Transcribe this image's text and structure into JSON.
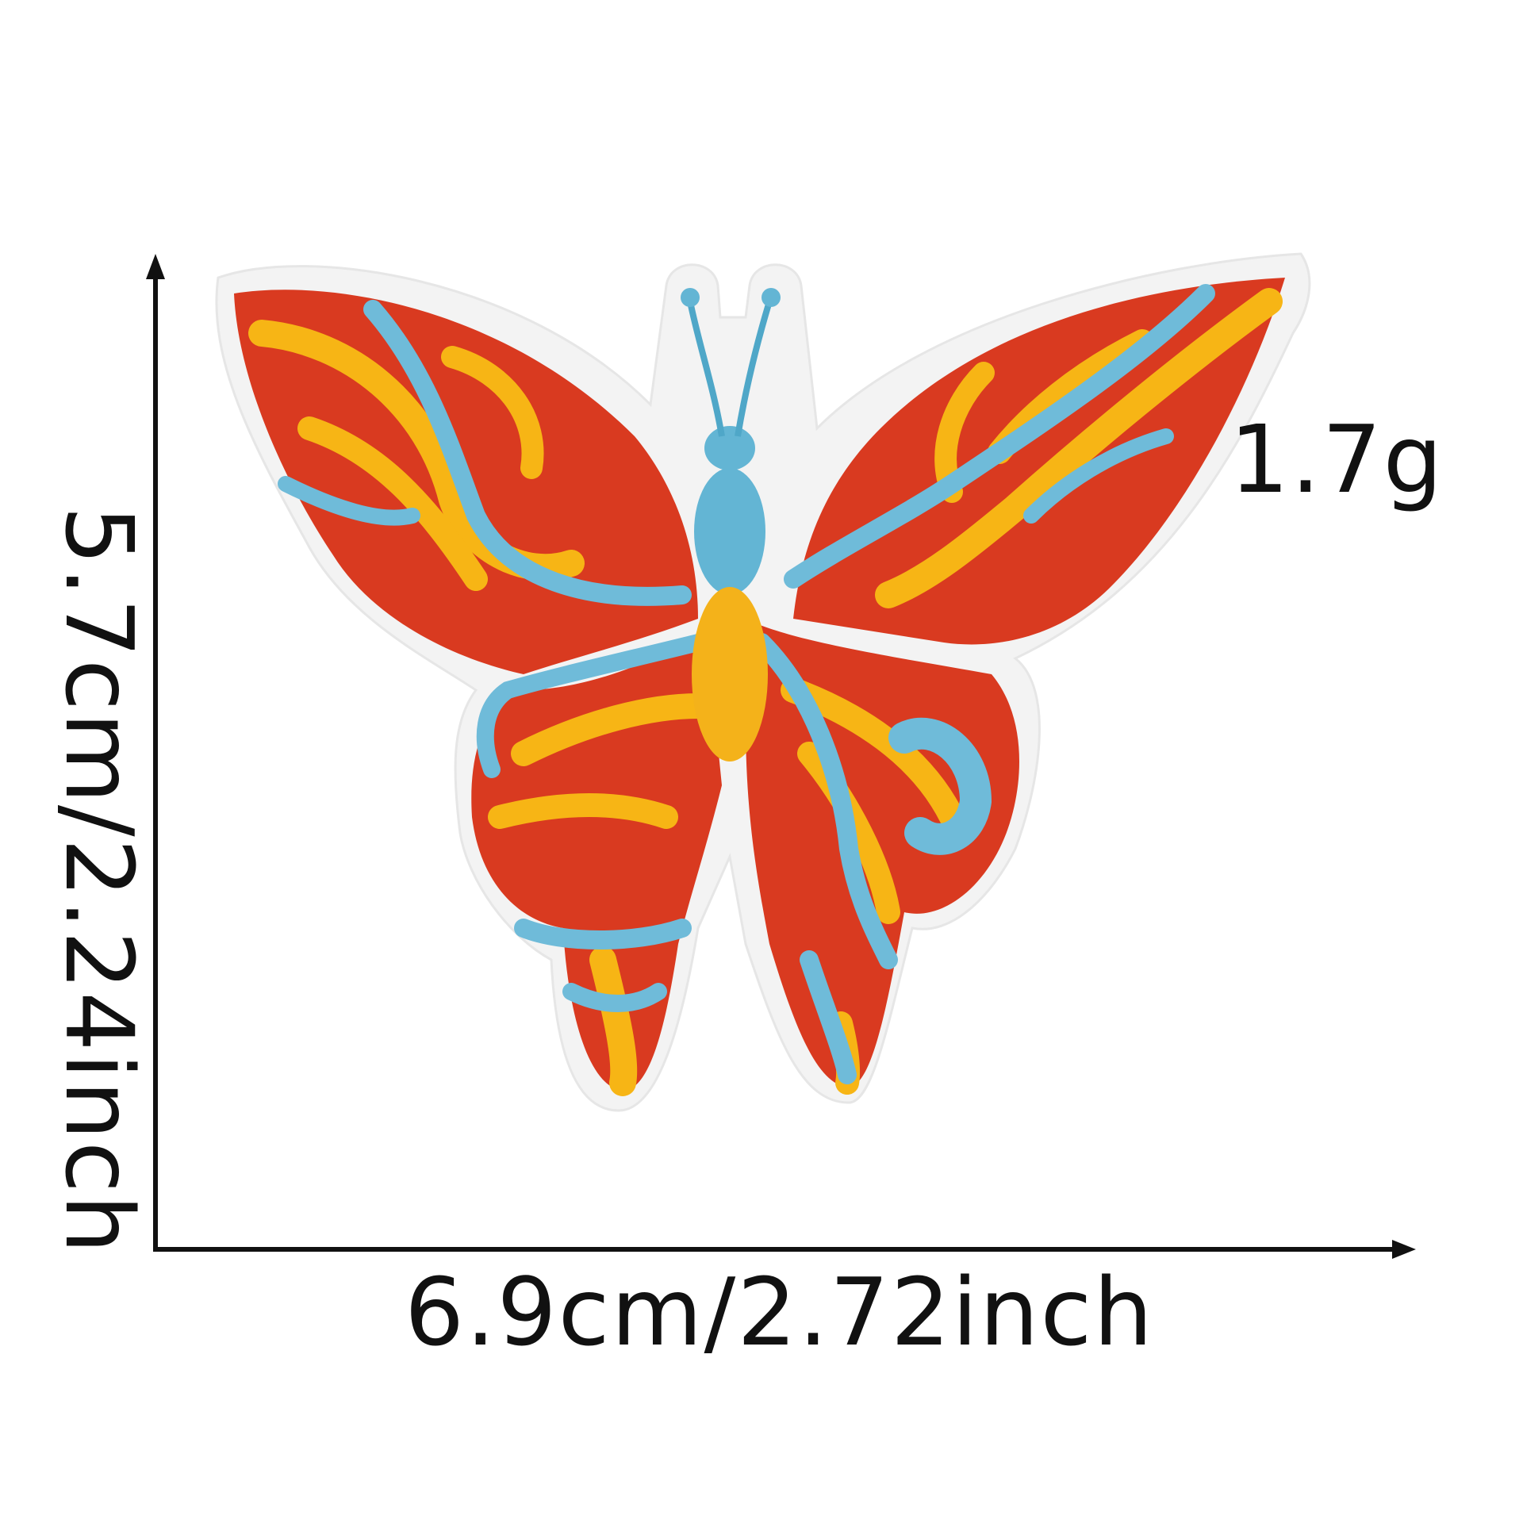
{
  "dimensions": {
    "width_text": "6.9cm/2.72inch",
    "height_text": "5.7cm/2.24inch",
    "weight_text": "1.7g"
  },
  "product": {
    "image_icon": "butterfly-patch-icon"
  },
  "colors": {
    "felt_border": "#f4f4f4",
    "wing_red": "#d93a20",
    "wing_yellow": "#f7b515",
    "wing_blue": "#6fbbd9",
    "body_yellow": "#f4b21a",
    "body_blue": "#63b5d4",
    "axis": "#111111"
  }
}
